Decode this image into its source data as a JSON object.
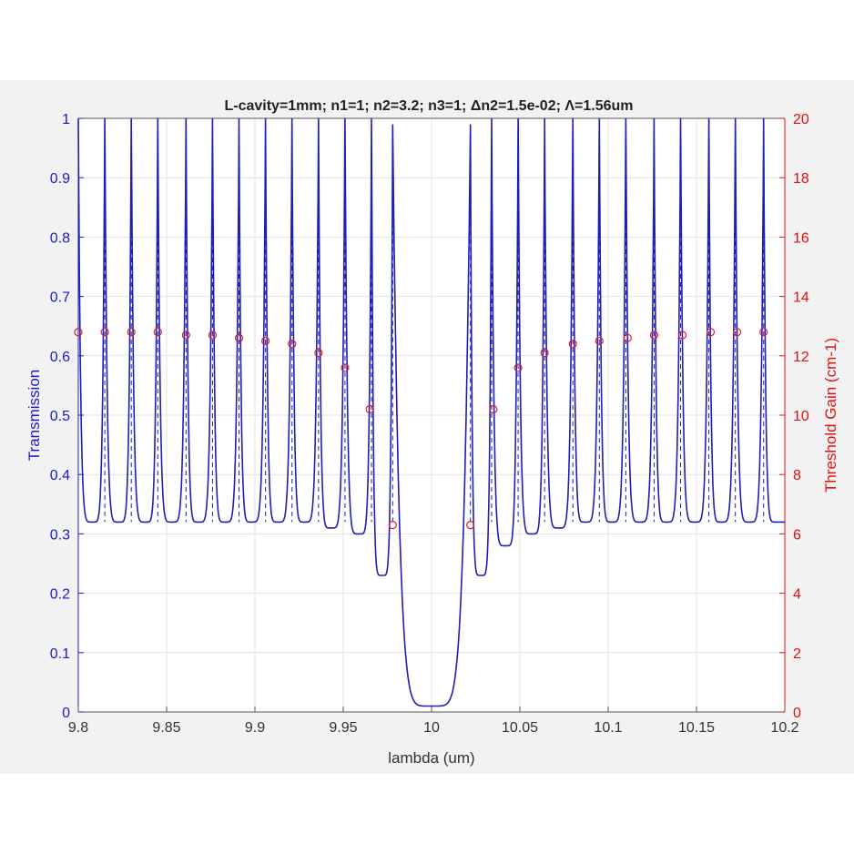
{
  "chart_data": {
    "type": "line",
    "title": "L-cavity=1mm; n1=1; n2=3.2; n3=1; Δn2=1.5e-02; Λ=1.56um",
    "xlabel": "lambda (um)",
    "ylabel_left": "Transmission",
    "ylabel_right": "Threshold Gain (cm-1)",
    "xlim": [
      9.8,
      10.2
    ],
    "ylim_left": [
      0,
      1
    ],
    "ylim_right": [
      0,
      20
    ],
    "x_ticks": [
      "9.8",
      "9.85",
      "9.9",
      "9.95",
      "10",
      "10.05",
      "10.1",
      "10.15",
      "10.2"
    ],
    "y_left_ticks": [
      "0",
      "0.1",
      "0.2",
      "0.3",
      "0.4",
      "0.5",
      "0.6",
      "0.7",
      "0.8",
      "0.9",
      "1"
    ],
    "y_right_ticks": [
      "0",
      "2",
      "4",
      "6",
      "8",
      "10",
      "12",
      "14",
      "16",
      "18",
      "20"
    ],
    "grid": true,
    "colors": {
      "transmission": "#1f1fb4",
      "threshold_gain": "#e02020",
      "left_axis": "#1a1acc",
      "right_axis": "#e01010"
    },
    "series": [
      {
        "axis": "left",
        "style": "solid line",
        "peaks_x": [
          9.8,
          9.815,
          9.83,
          9.845,
          9.861,
          9.876,
          9.891,
          9.906,
          9.921,
          9.936,
          9.951,
          9.966,
          9.978,
          10.022,
          10.034,
          10.049,
          10.064,
          10.08,
          10.095,
          10.11,
          10.126,
          10.141,
          10.157,
          10.172,
          10.188
        ],
        "peaks_y": [
          1,
          1,
          1,
          1,
          1,
          1,
          1,
          1,
          1,
          1,
          1,
          1,
          0.99,
          0.99,
          1,
          1,
          1,
          1,
          1,
          1,
          1,
          1,
          1,
          1,
          1
        ],
        "minima_x": [
          9.808,
          9.823,
          9.838,
          9.853,
          9.868,
          9.883,
          9.898,
          9.913,
          9.928,
          9.943,
          9.959,
          9.972,
          10.0,
          10.028,
          10.042,
          10.057,
          10.072,
          10.087,
          10.102,
          10.118,
          10.133,
          10.149,
          10.164,
          10.18,
          10.195
        ],
        "minima_y": [
          0.32,
          0.32,
          0.32,
          0.32,
          0.32,
          0.32,
          0.32,
          0.32,
          0.32,
          0.31,
          0.3,
          0.23,
          0.01,
          0.23,
          0.28,
          0.3,
          0.31,
          0.32,
          0.32,
          0.32,
          0.32,
          0.32,
          0.32,
          0.32,
          0.32
        ]
      },
      {
        "axis": "right",
        "style": "circle markers",
        "x": [
          9.8,
          9.815,
          9.83,
          9.845,
          9.861,
          9.876,
          9.891,
          9.906,
          9.921,
          9.936,
          9.951,
          9.965,
          9.978,
          10.022,
          10.035,
          10.049,
          10.064,
          10.08,
          10.095,
          10.111,
          10.126,
          10.142,
          10.158,
          10.173,
          10.188
        ],
        "y": [
          12.8,
          12.8,
          12.8,
          12.8,
          12.7,
          12.7,
          12.6,
          12.5,
          12.4,
          12.1,
          11.6,
          10.2,
          6.3,
          6.3,
          10.2,
          11.6,
          12.1,
          12.4,
          12.5,
          12.6,
          12.7,
          12.7,
          12.8,
          12.8,
          12.8
        ]
      }
    ]
  }
}
